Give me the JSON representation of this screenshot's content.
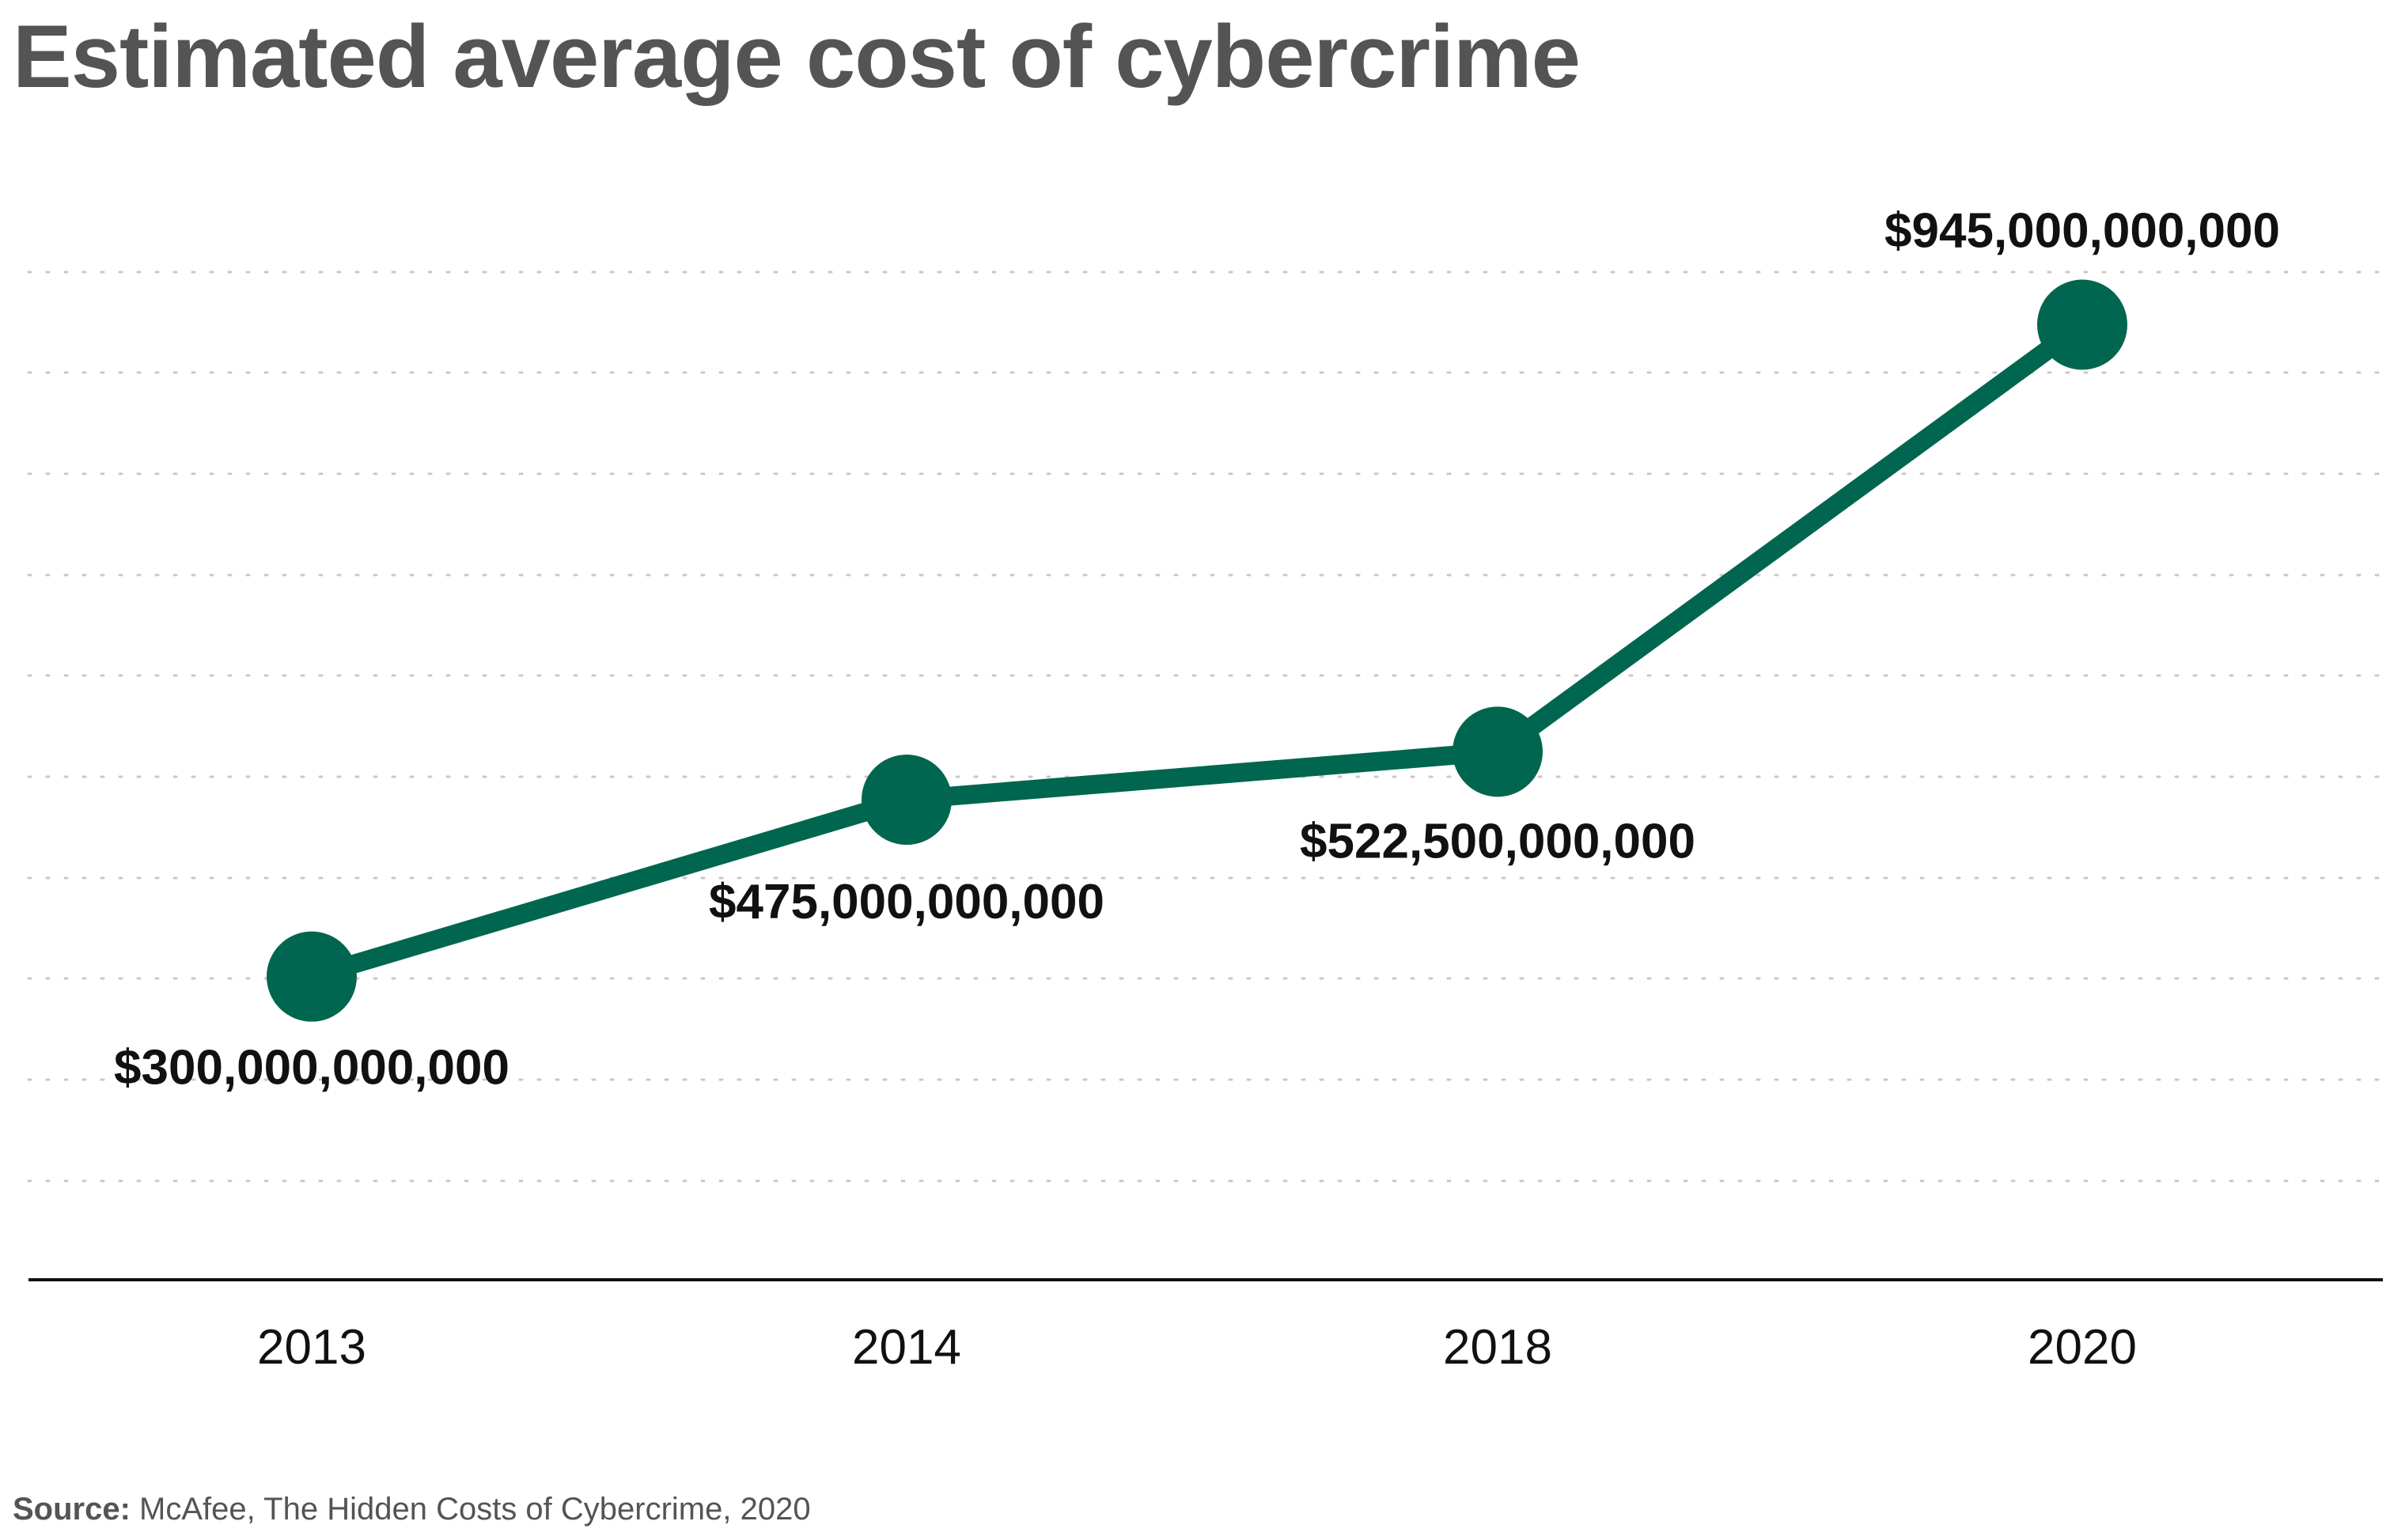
{
  "chart_data": {
    "type": "line",
    "title": "Estimated average cost of cybercrime",
    "categories": [
      "2013",
      "2014",
      "2018",
      "2020"
    ],
    "series": [
      {
        "values": [
          300000000000,
          475000000000,
          522500000000,
          945000000000
        ],
        "data_labels": [
          "$300,000,000,000",
          "$475,000,000,000",
          "$522,500,000,000",
          "$945,000,000,000"
        ],
        "color": "#00664F"
      }
    ],
    "xlabel": "",
    "ylabel": "",
    "ylim": [
      0,
      1000000000000
    ],
    "grid": true,
    "grid_style": "dotted",
    "legend": "none",
    "colors": {
      "line": "#00664F",
      "title": "#545454",
      "text": "#111111",
      "grid": "#c8c8c8",
      "axis": "#111111"
    }
  },
  "source": {
    "prefix": "Source:",
    "text": " McAfee, The Hidden Costs of Cybercrime, 2020"
  }
}
